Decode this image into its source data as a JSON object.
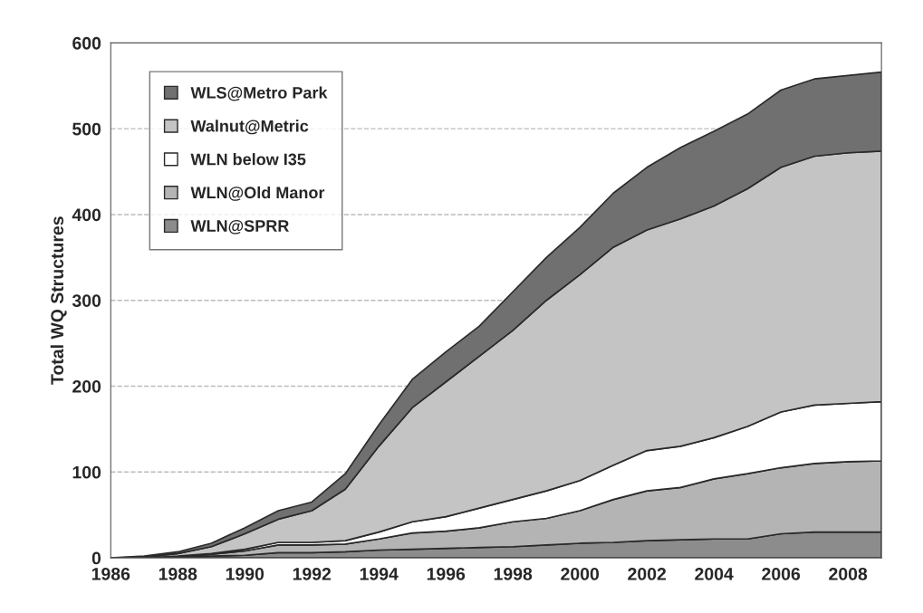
{
  "chart_data": {
    "type": "area",
    "stacked": true,
    "ylabel": "Total WQ Structures",
    "x": [
      1986,
      1987,
      1988,
      1989,
      1990,
      1991,
      1992,
      1993,
      1994,
      1995,
      1996,
      1997,
      1998,
      1999,
      2000,
      2001,
      2002,
      2003,
      2004,
      2005,
      2006,
      2007,
      2008,
      2009
    ],
    "series": [
      {
        "name": "WLN@SPRR",
        "color": "#8c8c8c",
        "values": [
          0,
          0,
          1,
          2,
          3,
          6,
          6,
          7,
          9,
          10,
          11,
          12,
          13,
          15,
          17,
          18,
          20,
          21,
          22,
          22,
          28,
          30,
          30,
          30
        ]
      },
      {
        "name": "WLN@Old Manor",
        "color": "#b4b4b4",
        "values": [
          0,
          0,
          1,
          2,
          5,
          9,
          9,
          9,
          13,
          19,
          20,
          23,
          29,
          31,
          38,
          50,
          58,
          61,
          70,
          76,
          77,
          80,
          82,
          83
        ]
      },
      {
        "name": "WLN below I35",
        "color": "#ffffff",
        "values": [
          0,
          0,
          0,
          1,
          2,
          3,
          3,
          4,
          8,
          13,
          17,
          23,
          26,
          32,
          35,
          40,
          47,
          48,
          48,
          55,
          65,
          68,
          68,
          69
        ]
      },
      {
        "name": "Walnut@Metric",
        "color": "#c4c4c4",
        "values": [
          0,
          1,
          3,
          8,
          18,
          27,
          37,
          60,
          100,
          133,
          157,
          177,
          197,
          222,
          240,
          254,
          257,
          265,
          270,
          277,
          285,
          290,
          292,
          292
        ]
      },
      {
        "name": "WLS@Metro Park",
        "color": "#707070",
        "values": [
          0,
          1,
          2,
          4,
          7,
          10,
          10,
          18,
          25,
          33,
          35,
          35,
          45,
          50,
          55,
          63,
          73,
          83,
          87,
          87,
          90,
          90,
          90,
          92
        ]
      }
    ],
    "xlim": [
      1986,
      2009
    ],
    "xticks": [
      1986,
      1988,
      1990,
      1992,
      1994,
      1996,
      1998,
      2000,
      2002,
      2004,
      2006,
      2008
    ],
    "ylim": [
      0,
      600
    ],
    "yticks": [
      0,
      100,
      200,
      300,
      400,
      500,
      600
    ],
    "grid": "y",
    "legend": "top left"
  }
}
